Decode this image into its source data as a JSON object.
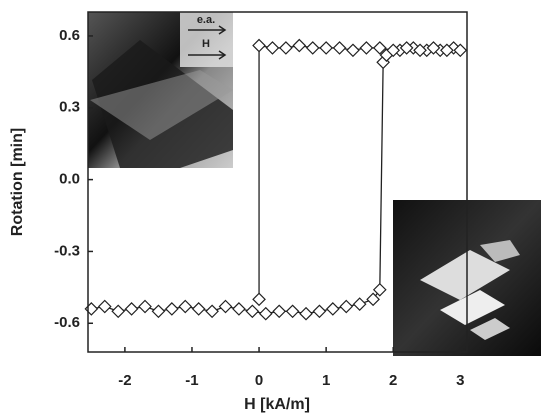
{
  "chart_data": {
    "type": "line",
    "x_label": "H [kA/m]",
    "y_label": "Rotation [min]",
    "annotations": [
      "e.a.",
      "H"
    ],
    "x": [
      -2.5,
      -2.3,
      -2.1,
      -1.9,
      -1.7,
      -1.5,
      -1.3,
      -1.1,
      -0.9,
      -0.7,
      -0.5,
      -0.3,
      -0.1,
      0.1,
      0.3,
      0.5,
      0.7,
      0.9,
      1.1,
      1.3,
      1.5,
      1.7,
      1.8,
      1.85,
      1.9,
      2.1,
      2.3,
      2.5,
      2.7,
      2.9,
      3.0,
      2.8,
      2.6,
      2.4,
      2.2,
      2.0,
      1.8,
      1.6,
      1.4,
      1.2,
      1.0,
      0.8,
      0.6,
      0.4,
      0.2,
      0.0,
      0.0
    ],
    "values": [
      -0.54,
      -0.53,
      -0.55,
      -0.54,
      -0.53,
      -0.55,
      -0.54,
      -0.53,
      -0.54,
      -0.55,
      -0.53,
      -0.54,
      -0.55,
      -0.56,
      -0.55,
      -0.55,
      -0.56,
      -0.55,
      -0.54,
      -0.53,
      -0.52,
      -0.5,
      -0.46,
      0.49,
      0.52,
      0.54,
      0.55,
      0.54,
      0.54,
      0.55,
      0.54,
      0.54,
      0.55,
      0.54,
      0.55,
      0.54,
      0.55,
      0.55,
      0.54,
      0.55,
      0.55,
      0.55,
      0.56,
      0.55,
      0.55,
      0.56,
      -0.5
    ],
    "color": "#222222",
    "xlim": [
      -2.55,
      3.1
    ],
    "xticks": [
      -2,
      -1,
      0,
      1,
      2,
      3
    ],
    "ylim": [
      -0.72,
      0.7
    ],
    "yticks": [
      0.6,
      0.3,
      {
        "value": 0,
        "label": "0.0"
      },
      -0.3,
      -0.6
    ]
  }
}
